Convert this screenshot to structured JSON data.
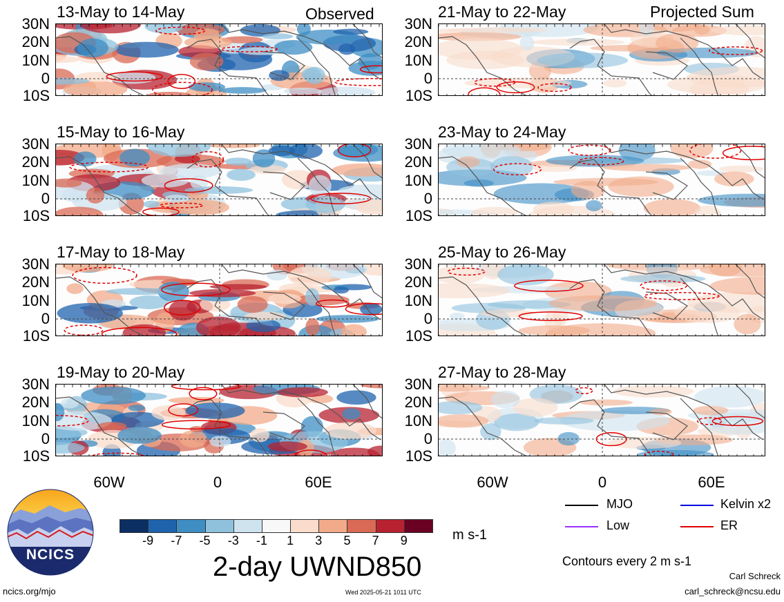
{
  "panels_left": [
    {
      "title": "13-May to 14-May",
      "note": "Observed"
    },
    {
      "title": "15-May to 16-May",
      "note": ""
    },
    {
      "title": "17-May to 18-May",
      "note": ""
    },
    {
      "title": "19-May to 20-May",
      "note": ""
    }
  ],
  "panels_right": [
    {
      "title": "21-May to 22-May",
      "note": "Projected Sum"
    },
    {
      "title": "23-May to 24-May",
      "note": ""
    },
    {
      "title": "25-May to 26-May",
      "note": ""
    },
    {
      "title": "27-May to 28-May",
      "note": ""
    }
  ],
  "lat_labels": [
    "30N",
    "20N",
    "10N",
    "0",
    "10S"
  ],
  "lon_labels": [
    "60W",
    "0",
    "60E"
  ],
  "colorbar": {
    "colors": [
      "#0b2f62",
      "#1f63ad",
      "#3e8ec4",
      "#8fc1dd",
      "#cfe3ef",
      "#f8f8f8",
      "#f9dccb",
      "#f2ab8a",
      "#da6a56",
      "#b72230",
      "#6a0022"
    ],
    "ticks": [
      "-9",
      "-7",
      "-5",
      "-3",
      "-1",
      "1",
      "3",
      "5",
      "7",
      "9"
    ],
    "unit": "m s-1"
  },
  "main_title": "2-day UWND850",
  "legend": [
    {
      "label": "MJO",
      "color": "#000000"
    },
    {
      "label": "Kelvin x2",
      "color": "#0000e0"
    },
    {
      "label": "Low",
      "color": "#9b30ff"
    },
    {
      "label": "ER",
      "color": "#e00000"
    }
  ],
  "contour_note": "Contours every 2 m s-1",
  "author": "Carl Schreck",
  "email": "carl_schreck@ncsu.edu",
  "website": "ncics.org/mjo",
  "timestamp": "Wed 2025-05-21 1011 UTC",
  "logo_text": "NCICS"
}
